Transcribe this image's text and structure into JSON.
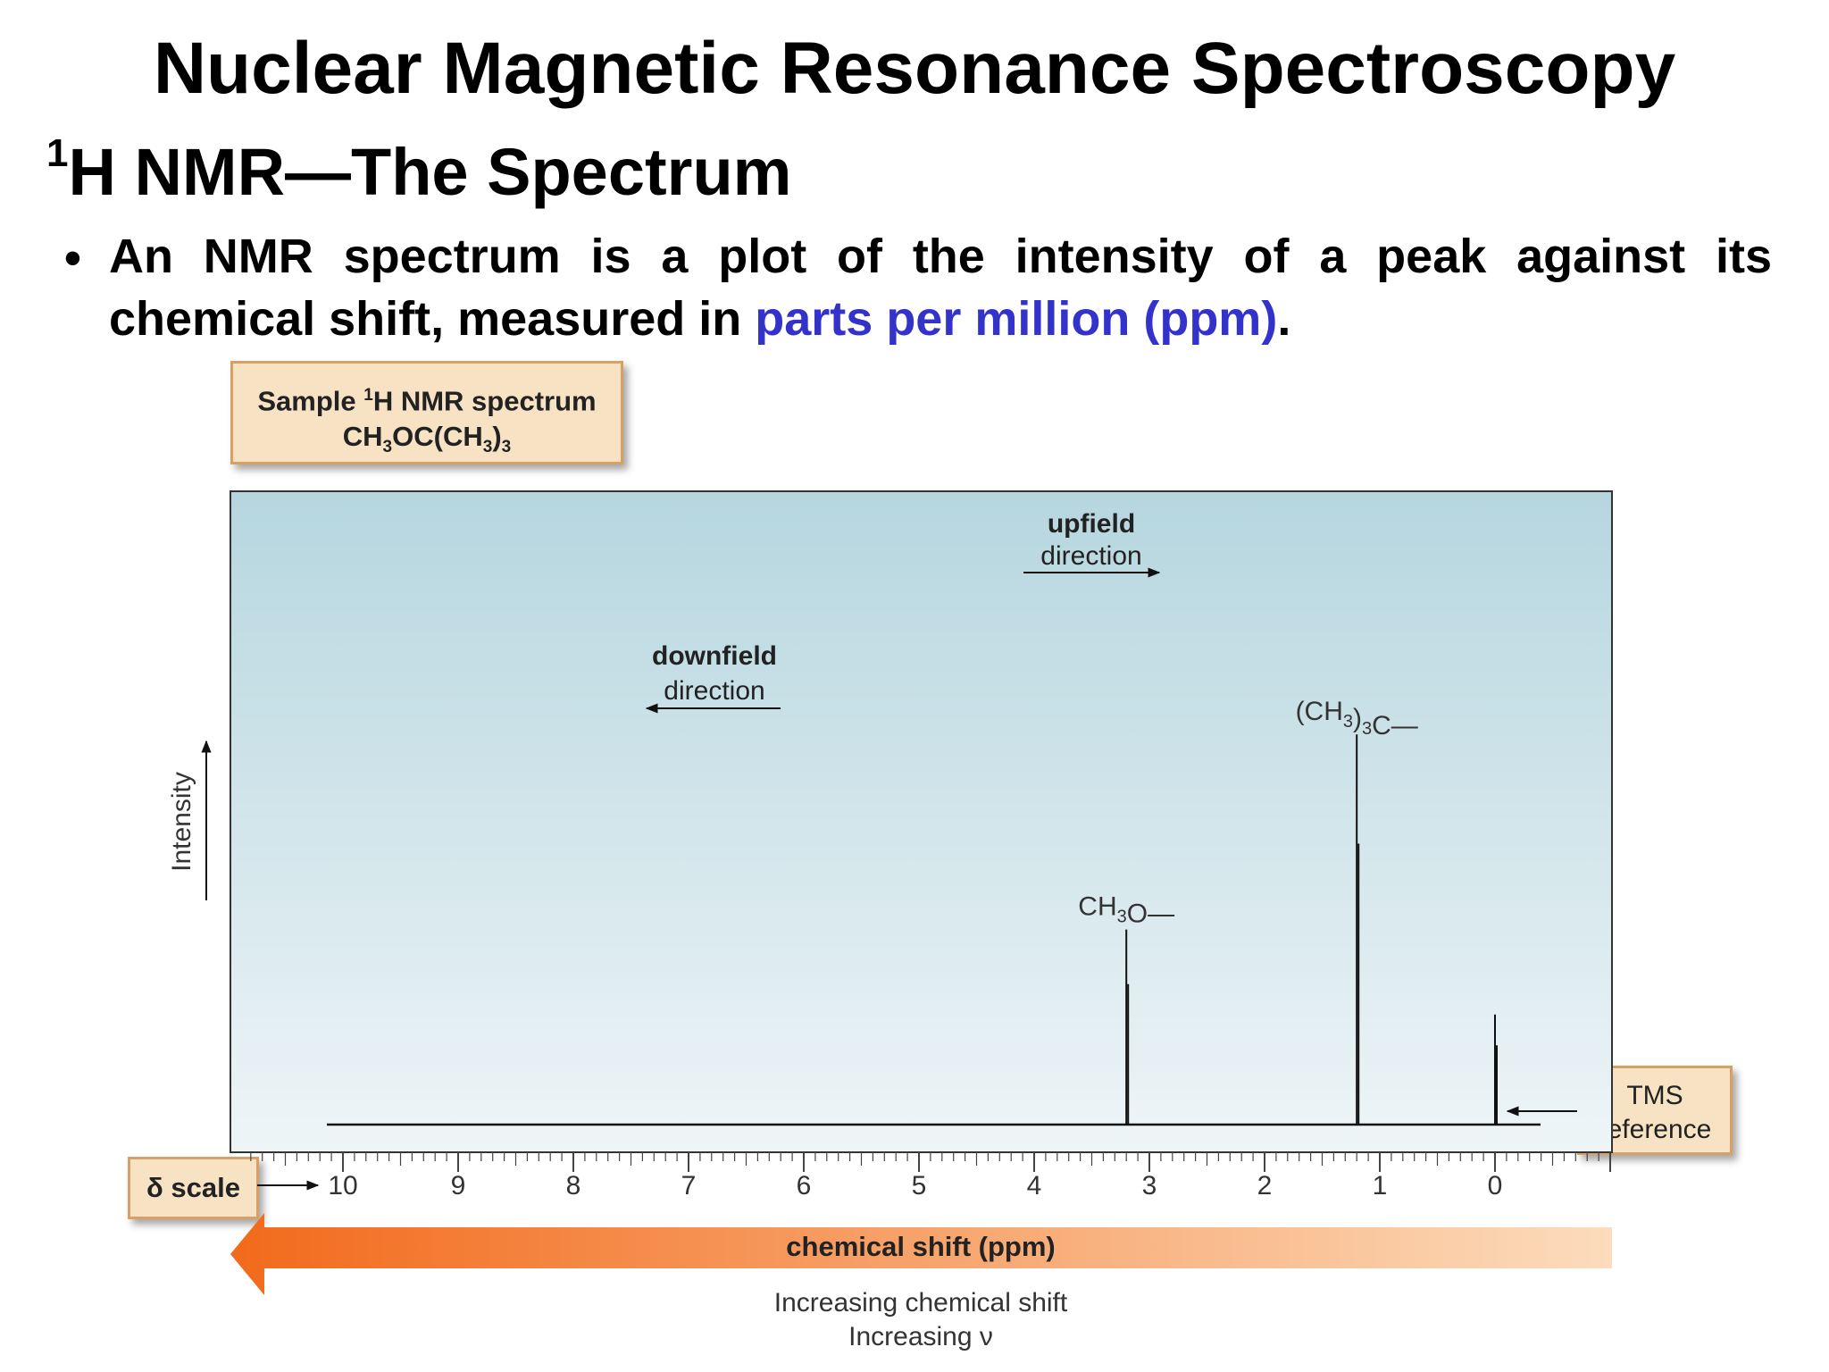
{
  "slide": {
    "title": "Nuclear Magnetic Resonance Spectroscopy",
    "subtitle_sup": "1",
    "subtitle_main": "H NMR—The Spectrum",
    "bullet_before": "An NMR spectrum is a plot of the intensity of a peak against its chemical shift, measured in ",
    "bullet_highlight": "parts per million (ppm)",
    "bullet_after": ".",
    "highlight_color": "#3333cc"
  },
  "callouts": {
    "sample_line1_a": "Sample ",
    "sample_line1_sup": "1",
    "sample_line1_b": "H NMR spectrum",
    "sample_line2_a": "CH",
    "sample_line2_sub1": "3",
    "sample_line2_b": "OC(CH",
    "sample_line2_sub2": "3",
    "sample_line2_c": ")",
    "sample_line2_sub3": "3",
    "delta_scale": "δ scale",
    "tms_line1": "TMS",
    "tms_line2": "reference"
  },
  "chart_data": {
    "type": "line",
    "xlabel": "chemical shift (ppm)",
    "ylabel": "Intensity",
    "xlim": [
      10.8,
      -1.0
    ],
    "x_ticks": [
      10,
      9,
      8,
      7,
      6,
      5,
      4,
      3,
      2,
      1,
      0
    ],
    "x_reversed": true,
    "grid": false,
    "peaks": [
      {
        "label": "CH3O—",
        "label_base": "CH",
        "label_sub": "3",
        "label_tail": "O—",
        "shift": 3.2,
        "relative_intensity": 0.39
      },
      {
        "label": "(CH3)3C—",
        "label_base": "(CH",
        "label_sub": "3",
        "label_tail": ")",
        "label_sub2": "3",
        "label_tail2": "C—",
        "shift": 1.2,
        "relative_intensity": 0.78
      },
      {
        "label": "TMS reference",
        "shift": 0.0,
        "relative_intensity": 0.22
      }
    ],
    "annotations": {
      "upfield_bold": "upfield",
      "upfield_sub": "direction",
      "downfield_bold": "downfield",
      "downfield_sub": "direction",
      "increasing_shift": "Increasing chemical shift",
      "increasing_freq": "Increasing ν"
    },
    "colors": {
      "plot_top": "#b6d6df",
      "plot_bottom": "#eef5f7",
      "arrow_dark": "#f26a1b",
      "arrow_light": "#fcdcbc",
      "callout_fill": "#f7e2c4",
      "callout_border": "#d9a066"
    }
  }
}
